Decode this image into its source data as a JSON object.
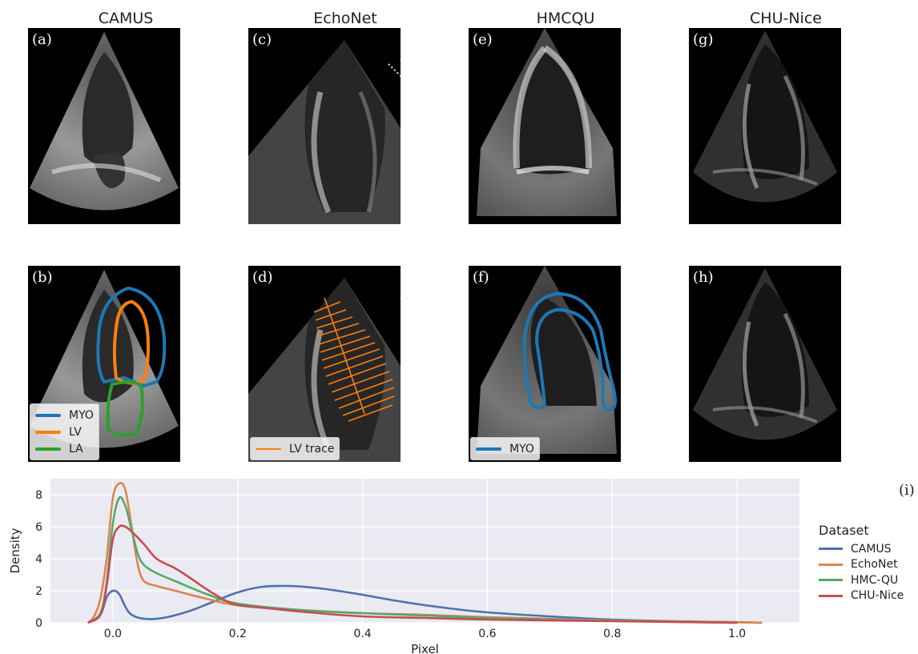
{
  "columns": [
    {
      "title": "CAMUS"
    },
    {
      "title": "EchoNet"
    },
    {
      "title": "HMCQU"
    },
    {
      "title": "CHU-Nice"
    }
  ],
  "panels": [
    {
      "label": "(a)"
    },
    {
      "label": "(b)"
    },
    {
      "label": "(c)"
    },
    {
      "label": "(d)"
    },
    {
      "label": "(e)"
    },
    {
      "label": "(f)"
    },
    {
      "label": "(g)"
    },
    {
      "label": "(h)"
    }
  ],
  "legends": {
    "b": [
      {
        "label": "MYO",
        "color": "#1f77b4"
      },
      {
        "label": "LV",
        "color": "#ff7f0e"
      },
      {
        "label": "LA",
        "color": "#2ca02c"
      }
    ],
    "d": [
      {
        "label": "LV trace",
        "color": "#ff7f0e"
      }
    ],
    "f": [
      {
        "label": "MYO",
        "color": "#1f77b4"
      }
    ]
  },
  "panel_i_label": "(i)",
  "chart_data": {
    "type": "line",
    "xlabel": "Pixel",
    "ylabel": "Density",
    "xlim": [
      -0.1,
      1.1
    ],
    "ylim": [
      0,
      9
    ],
    "xticks": [
      "0.0",
      "0.2",
      "0.4",
      "0.6",
      "0.8",
      "1.0"
    ],
    "yticks": [
      "0",
      "2",
      "4",
      "6",
      "8"
    ],
    "grid": true,
    "legend_title": "Dataset",
    "legend_position": "right",
    "series": [
      {
        "name": "CAMUS",
        "color": "#4c72b0",
        "x": [
          -0.04,
          -0.02,
          -0.01,
          0.0,
          0.01,
          0.02,
          0.03,
          0.05,
          0.08,
          0.12,
          0.16,
          0.2,
          0.24,
          0.28,
          0.32,
          0.36,
          0.4,
          0.45,
          0.5,
          0.55,
          0.6,
          0.7,
          0.8,
          0.9,
          1.0,
          1.04
        ],
        "y": [
          0.0,
          0.5,
          1.6,
          2.0,
          1.8,
          1.0,
          0.5,
          0.25,
          0.3,
          0.7,
          1.3,
          1.9,
          2.25,
          2.3,
          2.2,
          2.0,
          1.75,
          1.4,
          1.1,
          0.85,
          0.65,
          0.4,
          0.2,
          0.1,
          0.04,
          0.0
        ]
      },
      {
        "name": "EchoNet",
        "color": "#dd8452",
        "x": [
          -0.04,
          -0.03,
          -0.02,
          -0.01,
          0.0,
          0.01,
          0.02,
          0.03,
          0.04,
          0.05,
          0.07,
          0.1,
          0.15,
          0.2,
          0.3,
          0.4,
          0.5,
          0.6,
          0.8,
          1.0,
          1.04
        ],
        "y": [
          0.0,
          0.4,
          1.5,
          4.0,
          7.8,
          8.7,
          8.3,
          6.0,
          3.6,
          2.6,
          2.3,
          2.0,
          1.5,
          1.1,
          0.8,
          0.6,
          0.5,
          0.35,
          0.15,
          0.03,
          0.0
        ]
      },
      {
        "name": "HMC-QU",
        "color": "#55a868",
        "x": [
          -0.04,
          -0.02,
          -0.01,
          0.0,
          0.01,
          0.02,
          0.03,
          0.04,
          0.05,
          0.07,
          0.1,
          0.15,
          0.2,
          0.3,
          0.4,
          0.5,
          0.6,
          0.8,
          1.0
        ],
        "y": [
          0.0,
          0.6,
          2.5,
          6.2,
          7.8,
          7.3,
          5.8,
          4.3,
          3.6,
          3.1,
          2.6,
          1.8,
          1.2,
          0.8,
          0.6,
          0.45,
          0.3,
          0.12,
          0.0
        ]
      },
      {
        "name": "CHU-Nice",
        "color": "#c44e52",
        "x": [
          -0.04,
          -0.02,
          -0.01,
          0.0,
          0.01,
          0.02,
          0.03,
          0.05,
          0.07,
          0.1,
          0.12,
          0.15,
          0.18,
          0.2,
          0.25,
          0.3,
          0.4,
          0.5,
          0.6,
          0.8,
          1.0
        ],
        "y": [
          0.0,
          0.5,
          2.3,
          5.2,
          6.0,
          6.0,
          5.7,
          4.9,
          4.0,
          3.4,
          2.9,
          2.1,
          1.4,
          1.1,
          0.9,
          0.7,
          0.4,
          0.3,
          0.2,
          0.1,
          0.0
        ]
      }
    ]
  }
}
